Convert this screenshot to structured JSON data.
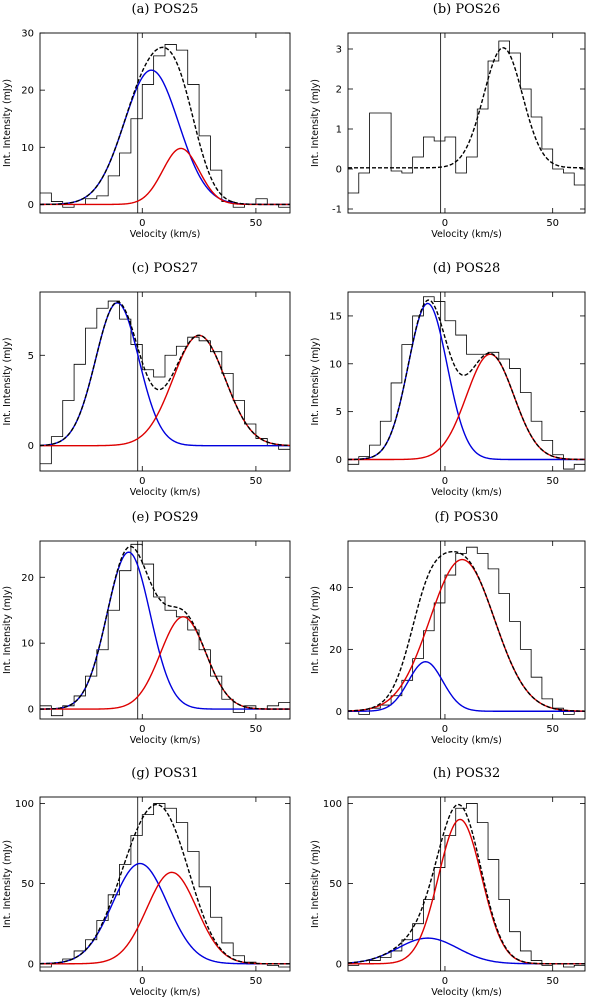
{
  "figure": {
    "xlabel": "Velocity (km/s)",
    "ylabel": "Int. Intensity (mJy)",
    "xlim": [
      -45,
      65
    ],
    "x_ticks": [
      0,
      50
    ],
    "colors": {
      "observed": "#000000",
      "total_fit": "#000000",
      "component_1": "#0000dd",
      "component_2": "#dd0000",
      "reference_line": "#000000"
    },
    "reference_velocity": -2
  },
  "chart_data": [
    {
      "type": "line",
      "title": "(a) POS25",
      "ylim": [
        -1.5,
        30
      ],
      "y_ticks": [
        0,
        10,
        20,
        30
      ],
      "observed": {
        "edges": [
          -45,
          -40,
          -35,
          -30,
          -25,
          -20,
          -15,
          -10,
          -5,
          0,
          5,
          10,
          15,
          20,
          25,
          30,
          35,
          40,
          45,
          50,
          55,
          60,
          65
        ],
        "values": [
          2,
          0.5,
          -0.5,
          0,
          1,
          1.5,
          5,
          9,
          15,
          21,
          26,
          28,
          27,
          21,
          12,
          6,
          0.5,
          -0.5,
          0,
          1,
          0,
          -0.5
        ]
      },
      "components": [
        {
          "color": "blue",
          "amp": 23.5,
          "center": 4,
          "sigma": 12
        },
        {
          "color": "red",
          "amp": 9.8,
          "center": 17,
          "sigma": 8
        }
      ]
    },
    {
      "type": "line",
      "title": "(b) POS26",
      "ylim": [
        -1.1,
        3.4
      ],
      "y_ticks": [
        -1,
        0,
        1,
        2,
        3
      ],
      "observed": {
        "edges": [
          -45,
          -40,
          -35,
          -30,
          -25,
          -20,
          -15,
          -10,
          -5,
          0,
          5,
          10,
          15,
          20,
          25,
          30,
          35,
          40,
          45,
          50,
          55,
          60,
          65
        ],
        "values": [
          -0.6,
          -0.1,
          1.4,
          1.4,
          -0.05,
          -0.1,
          0.3,
          0.8,
          0.7,
          0.8,
          -0.1,
          0.3,
          1.5,
          2.7,
          3.2,
          2.9,
          2.0,
          1.3,
          0.5,
          0,
          -0.1,
          -0.4
        ]
      },
      "components": [
        {
          "color": "black",
          "amp": 3.0,
          "center": 27,
          "sigma": 9,
          "offset": 0.03
        }
      ]
    },
    {
      "type": "line",
      "title": "(c) POS27",
      "ylim": [
        -1.4,
        8.5
      ],
      "y_ticks": [
        0,
        5
      ],
      "observed": {
        "edges": [
          -45,
          -40,
          -35,
          -30,
          -25,
          -20,
          -15,
          -10,
          -5,
          0,
          5,
          10,
          15,
          20,
          25,
          30,
          35,
          40,
          45,
          50,
          55,
          60,
          65
        ],
        "values": [
          -1,
          0.5,
          2.5,
          4.5,
          6.5,
          7.6,
          8,
          7,
          5.6,
          4.2,
          3.8,
          5,
          5.5,
          6,
          5.8,
          5.2,
          4,
          2.5,
          1.2,
          0.4,
          0,
          -0.2
        ]
      },
      "components": [
        {
          "color": "blue",
          "amp": 7.9,
          "center": -11,
          "sigma": 9.5
        },
        {
          "color": "red",
          "amp": 6.1,
          "center": 25,
          "sigma": 11.5
        }
      ]
    },
    {
      "type": "line",
      "title": "(d) POS28",
      "ylim": [
        -1.2,
        17.5
      ],
      "y_ticks": [
        0,
        5,
        10,
        15
      ],
      "observed": {
        "edges": [
          -45,
          -40,
          -35,
          -30,
          -25,
          -20,
          -15,
          -10,
          -5,
          0,
          5,
          10,
          15,
          20,
          25,
          30,
          35,
          40,
          45,
          50,
          55,
          60,
          65
        ],
        "values": [
          -0.5,
          0.3,
          1.5,
          4,
          8,
          12,
          15,
          17,
          16.5,
          14.5,
          13,
          11,
          11,
          11.2,
          10.5,
          9.5,
          7,
          4,
          2,
          0.5,
          -1,
          -0.5
        ]
      },
      "components": [
        {
          "color": "blue",
          "amp": 16.3,
          "center": -8,
          "sigma": 9
        },
        {
          "color": "red",
          "amp": 11,
          "center": 21,
          "sigma": 11
        }
      ]
    },
    {
      "type": "line",
      "title": "(e) POS29",
      "ylim": [
        -1.5,
        25.5
      ],
      "y_ticks": [
        0,
        10,
        20
      ],
      "observed": {
        "edges": [
          -45,
          -40,
          -35,
          -30,
          -25,
          -20,
          -15,
          -10,
          -5,
          0,
          5,
          10,
          15,
          20,
          25,
          30,
          35,
          40,
          45,
          50,
          55,
          60,
          65
        ],
        "values": [
          0.5,
          -1,
          0.5,
          2,
          5,
          9,
          15,
          21,
          25,
          22,
          17,
          15,
          14,
          12,
          9,
          5,
          1.5,
          -0.5,
          0.5,
          0,
          0.5,
          1
        ]
      },
      "components": [
        {
          "color": "blue",
          "amp": 23.8,
          "center": -6,
          "sigma": 9.5
        },
        {
          "color": "red",
          "amp": 14,
          "center": 18,
          "sigma": 10
        }
      ]
    },
    {
      "type": "line",
      "title": "(f) POS30",
      "ylim": [
        -2.5,
        55
      ],
      "y_ticks": [
        0,
        20,
        40
      ],
      "observed": {
        "edges": [
          -45,
          -40,
          -35,
          -30,
          -25,
          -20,
          -15,
          -10,
          -5,
          0,
          5,
          10,
          15,
          20,
          25,
          30,
          35,
          40,
          45,
          50,
          55,
          60,
          65
        ],
        "values": [
          0,
          -1,
          1,
          2,
          5,
          10,
          17,
          26,
          35,
          44,
          51,
          53,
          51,
          46,
          38,
          29,
          20,
          11,
          4,
          1,
          -1,
          0
        ]
      },
      "components": [
        {
          "color": "blue",
          "amp": 16,
          "center": -9,
          "sigma": 8
        },
        {
          "color": "red",
          "amp": 49,
          "center": 8,
          "sigma": 15
        }
      ]
    },
    {
      "type": "line",
      "title": "(g) POS31",
      "ylim": [
        -4.5,
        104
      ],
      "y_ticks": [
        0,
        50,
        100
      ],
      "observed": {
        "edges": [
          -45,
          -40,
          -35,
          -30,
          -25,
          -20,
          -15,
          -10,
          -5,
          0,
          5,
          10,
          15,
          20,
          25,
          30,
          35,
          40,
          45,
          50,
          55,
          60,
          65
        ],
        "values": [
          -2,
          0,
          3,
          8,
          15,
          27,
          43,
          62,
          80,
          93,
          100,
          97,
          88,
          70,
          48,
          29,
          13,
          5,
          1,
          0,
          -1,
          -2
        ]
      },
      "components": [
        {
          "color": "blue",
          "amp": 62.5,
          "center": -1,
          "sigma": 12
        },
        {
          "color": "red",
          "amp": 57,
          "center": 13,
          "sigma": 11
        }
      ]
    },
    {
      "type": "line",
      "title": "(h) POS32",
      "ylim": [
        -4.5,
        104
      ],
      "y_ticks": [
        0,
        50,
        100
      ],
      "observed": {
        "edges": [
          -45,
          -40,
          -35,
          -30,
          -25,
          -20,
          -15,
          -10,
          -5,
          0,
          5,
          10,
          15,
          20,
          25,
          30,
          35,
          40,
          45,
          50,
          55,
          60,
          65
        ],
        "values": [
          -1,
          0,
          2,
          4,
          8,
          15,
          25,
          40,
          60,
          80,
          97,
          100,
          88,
          65,
          40,
          20,
          8,
          2,
          -1,
          0,
          -2,
          -1
        ]
      },
      "components": [
        {
          "color": "blue",
          "amp": 16,
          "center": -8,
          "sigma": 14
        },
        {
          "color": "red",
          "amp": 90,
          "center": 7,
          "sigma": 10
        }
      ]
    }
  ]
}
